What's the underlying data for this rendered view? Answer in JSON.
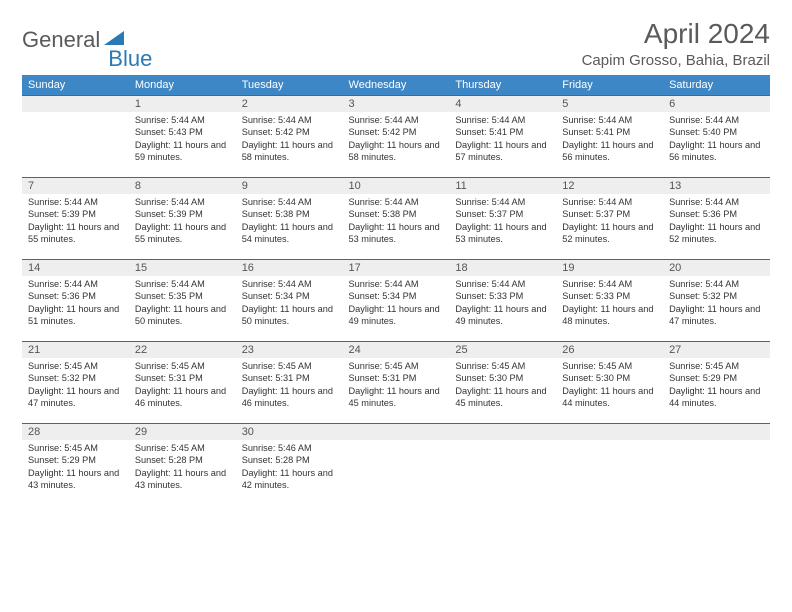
{
  "brand": {
    "part1": "General",
    "part2": "Blue"
  },
  "title": "April 2024",
  "location": "Capim Grosso, Bahia, Brazil",
  "colors": {
    "header_bg": "#3d87c7",
    "header_text": "#ffffff",
    "daynum_bg": "#eeeeee",
    "border": "#2a6fa8",
    "brand_gray": "#5a5a5a",
    "brand_blue": "#2a7ab8"
  },
  "days_of_week": [
    "Sunday",
    "Monday",
    "Tuesday",
    "Wednesday",
    "Thursday",
    "Friday",
    "Saturday"
  ],
  "weeks": [
    [
      null,
      {
        "n": "1",
        "sr": "5:44 AM",
        "ss": "5:43 PM",
        "dl": "11 hours and 59 minutes."
      },
      {
        "n": "2",
        "sr": "5:44 AM",
        "ss": "5:42 PM",
        "dl": "11 hours and 58 minutes."
      },
      {
        "n": "3",
        "sr": "5:44 AM",
        "ss": "5:42 PM",
        "dl": "11 hours and 58 minutes."
      },
      {
        "n": "4",
        "sr": "5:44 AM",
        "ss": "5:41 PM",
        "dl": "11 hours and 57 minutes."
      },
      {
        "n": "5",
        "sr": "5:44 AM",
        "ss": "5:41 PM",
        "dl": "11 hours and 56 minutes."
      },
      {
        "n": "6",
        "sr": "5:44 AM",
        "ss": "5:40 PM",
        "dl": "11 hours and 56 minutes."
      }
    ],
    [
      {
        "n": "7",
        "sr": "5:44 AM",
        "ss": "5:39 PM",
        "dl": "11 hours and 55 minutes."
      },
      {
        "n": "8",
        "sr": "5:44 AM",
        "ss": "5:39 PM",
        "dl": "11 hours and 55 minutes."
      },
      {
        "n": "9",
        "sr": "5:44 AM",
        "ss": "5:38 PM",
        "dl": "11 hours and 54 minutes."
      },
      {
        "n": "10",
        "sr": "5:44 AM",
        "ss": "5:38 PM",
        "dl": "11 hours and 53 minutes."
      },
      {
        "n": "11",
        "sr": "5:44 AM",
        "ss": "5:37 PM",
        "dl": "11 hours and 53 minutes."
      },
      {
        "n": "12",
        "sr": "5:44 AM",
        "ss": "5:37 PM",
        "dl": "11 hours and 52 minutes."
      },
      {
        "n": "13",
        "sr": "5:44 AM",
        "ss": "5:36 PM",
        "dl": "11 hours and 52 minutes."
      }
    ],
    [
      {
        "n": "14",
        "sr": "5:44 AM",
        "ss": "5:36 PM",
        "dl": "11 hours and 51 minutes."
      },
      {
        "n": "15",
        "sr": "5:44 AM",
        "ss": "5:35 PM",
        "dl": "11 hours and 50 minutes."
      },
      {
        "n": "16",
        "sr": "5:44 AM",
        "ss": "5:34 PM",
        "dl": "11 hours and 50 minutes."
      },
      {
        "n": "17",
        "sr": "5:44 AM",
        "ss": "5:34 PM",
        "dl": "11 hours and 49 minutes."
      },
      {
        "n": "18",
        "sr": "5:44 AM",
        "ss": "5:33 PM",
        "dl": "11 hours and 49 minutes."
      },
      {
        "n": "19",
        "sr": "5:44 AM",
        "ss": "5:33 PM",
        "dl": "11 hours and 48 minutes."
      },
      {
        "n": "20",
        "sr": "5:44 AM",
        "ss": "5:32 PM",
        "dl": "11 hours and 47 minutes."
      }
    ],
    [
      {
        "n": "21",
        "sr": "5:45 AM",
        "ss": "5:32 PM",
        "dl": "11 hours and 47 minutes."
      },
      {
        "n": "22",
        "sr": "5:45 AM",
        "ss": "5:31 PM",
        "dl": "11 hours and 46 minutes."
      },
      {
        "n": "23",
        "sr": "5:45 AM",
        "ss": "5:31 PM",
        "dl": "11 hours and 46 minutes."
      },
      {
        "n": "24",
        "sr": "5:45 AM",
        "ss": "5:31 PM",
        "dl": "11 hours and 45 minutes."
      },
      {
        "n": "25",
        "sr": "5:45 AM",
        "ss": "5:30 PM",
        "dl": "11 hours and 45 minutes."
      },
      {
        "n": "26",
        "sr": "5:45 AM",
        "ss": "5:30 PM",
        "dl": "11 hours and 44 minutes."
      },
      {
        "n": "27",
        "sr": "5:45 AM",
        "ss": "5:29 PM",
        "dl": "11 hours and 44 minutes."
      }
    ],
    [
      {
        "n": "28",
        "sr": "5:45 AM",
        "ss": "5:29 PM",
        "dl": "11 hours and 43 minutes."
      },
      {
        "n": "29",
        "sr": "5:45 AM",
        "ss": "5:28 PM",
        "dl": "11 hours and 43 minutes."
      },
      {
        "n": "30",
        "sr": "5:46 AM",
        "ss": "5:28 PM",
        "dl": "11 hours and 42 minutes."
      },
      null,
      null,
      null,
      null
    ]
  ],
  "labels": {
    "sunrise": "Sunrise:",
    "sunset": "Sunset:",
    "daylight": "Daylight:"
  }
}
